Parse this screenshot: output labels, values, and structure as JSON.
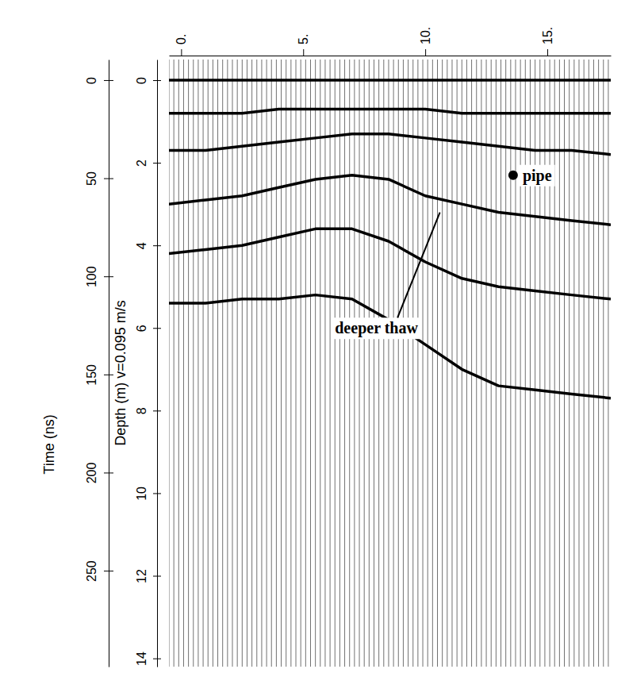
{
  "chart_data": {
    "type": "radargram",
    "xlim": [
      -0.5,
      17.6
    ],
    "xticks": [
      {
        "value": 0,
        "label": "0."
      },
      {
        "value": 5,
        "label": "5."
      },
      {
        "value": 10,
        "label": "10."
      },
      {
        "value": 15,
        "label": "15."
      }
    ],
    "y_label": "Time (ns)",
    "ylim": [
      -10.5,
      298.9
    ],
    "yticks": [
      0,
      50,
      100,
      150,
      200,
      250
    ],
    "y2_label": "Depth (m) v=0.095 m/s",
    "y2lim": [
      -0.5,
      14.2
    ],
    "y2ticks": [
      0,
      2,
      4,
      6,
      8,
      10,
      12,
      14
    ],
    "x": [
      -0.5,
      1,
      2.5,
      4,
      5.5,
      7,
      8.5,
      10,
      11.5,
      13,
      14.5,
      16,
      17.6
    ],
    "series": [
      {
        "color": "#000000",
        "axis": "y2",
        "values": [
          0,
          0,
          0,
          0,
          0,
          0,
          0,
          0,
          0,
          0,
          0,
          0,
          0
        ]
      },
      {
        "color": "#000000",
        "axis": "y2",
        "values": [
          0.8,
          0.8,
          0.8,
          0.7,
          0.7,
          0.7,
          0.7,
          0.7,
          0.8,
          0.8,
          0.8,
          0.8,
          0.8
        ]
      },
      {
        "color": "#000000",
        "axis": "y2",
        "values": [
          1.7,
          1.7,
          1.6,
          1.5,
          1.4,
          1.3,
          1.3,
          1.4,
          1.5,
          1.6,
          1.7,
          1.7,
          1.8
        ]
      },
      {
        "color": "#000000",
        "axis": "y2",
        "values": [
          3.0,
          2.9,
          2.8,
          2.6,
          2.4,
          2.3,
          2.4,
          2.8,
          3.0,
          3.2,
          3.3,
          3.4,
          3.5
        ]
      },
      {
        "color": "#000000",
        "axis": "y2",
        "values": [
          4.2,
          4.1,
          4.0,
          3.8,
          3.6,
          3.6,
          3.9,
          4.4,
          4.8,
          5.0,
          5.1,
          5.2,
          5.3
        ]
      },
      {
        "color": "#000000",
        "axis": "y2",
        "values": [
          5.4,
          5.4,
          5.3,
          5.3,
          5.2,
          5.3,
          5.8,
          6.4,
          7.0,
          7.4,
          7.5,
          7.6,
          7.7
        ]
      }
    ],
    "annotations": [
      {
        "text": "pipe",
        "x": 13.6,
        "depth": 2.3
      },
      {
        "text": "deeper thaw",
        "x": 8.0,
        "depth": 6.0,
        "arrow_to": [
          10.6,
          3.2
        ]
      }
    ]
  }
}
